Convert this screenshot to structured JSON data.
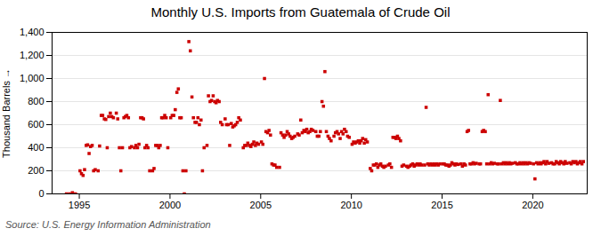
{
  "chart_data": {
    "type": "scatter",
    "title": "Monthly U.S. Imports from Guatemala of Crude Oil",
    "ylabel": "Thousand Barrels",
    "source": "Source: U.S. Energy Information Administration",
    "color": "#cc0000",
    "marker": "square",
    "grid": "y",
    "xlim": [
      1993.5,
      2023.0
    ],
    "ylim": [
      0,
      1400
    ],
    "xticks": [
      1995,
      2000,
      2005,
      2010,
      2015,
      2020
    ],
    "yticks": [
      0,
      200,
      400,
      600,
      800,
      {
        "value": 1000,
        "label": "1,000"
      },
      {
        "value": 1200,
        "label": "1,200"
      },
      {
        "value": 1400,
        "label": "1,400"
      }
    ],
    "x": [
      1994.29,
      1994.46,
      1994.62,
      1994.79,
      1995.04,
      1995.12,
      1995.21,
      1995.29,
      1995.38,
      1995.46,
      1995.54,
      1995.62,
      1995.71,
      1995.79,
      1995.88,
      1996.04,
      1996.12,
      1996.21,
      1996.29,
      1996.38,
      1996.46,
      1996.54,
      1996.62,
      1996.71,
      1996.79,
      1996.88,
      1997.04,
      1997.12,
      1997.21,
      1997.29,
      1997.38,
      1997.46,
      1997.54,
      1997.62,
      1997.71,
      1997.79,
      1997.88,
      1998.04,
      1998.12,
      1998.21,
      1998.29,
      1998.38,
      1998.46,
      1998.54,
      1998.62,
      1998.71,
      1998.79,
      1998.88,
      1999.04,
      1999.12,
      1999.21,
      1999.29,
      1999.38,
      1999.46,
      1999.54,
      1999.62,
      1999.71,
      1999.79,
      1999.88,
      2000.04,
      2000.12,
      2000.21,
      2000.29,
      2000.38,
      2000.46,
      2000.54,
      2000.62,
      2000.71,
      2000.79,
      2000.88,
      2001.04,
      2001.12,
      2001.21,
      2001.29,
      2001.38,
      2001.46,
      2001.54,
      2001.62,
      2001.71,
      2001.79,
      2001.88,
      2002.04,
      2002.12,
      2002.21,
      2002.29,
      2002.38,
      2002.46,
      2002.54,
      2002.62,
      2002.71,
      2002.79,
      2002.88,
      2003.04,
      2003.12,
      2003.21,
      2003.29,
      2003.38,
      2003.46,
      2003.54,
      2003.62,
      2003.71,
      2003.79,
      2003.88,
      2004.04,
      2004.12,
      2004.21,
      2004.29,
      2004.38,
      2004.46,
      2004.54,
      2004.62,
      2004.71,
      2004.79,
      2004.88,
      2005.04,
      2005.12,
      2005.21,
      2005.29,
      2005.38,
      2005.46,
      2005.54,
      2005.62,
      2005.71,
      2005.79,
      2005.88,
      2006.04,
      2006.12,
      2006.21,
      2006.29,
      2006.38,
      2006.46,
      2006.54,
      2006.62,
      2006.71,
      2006.79,
      2006.88,
      2007.04,
      2007.12,
      2007.21,
      2007.29,
      2007.38,
      2007.46,
      2007.54,
      2007.62,
      2007.71,
      2007.79,
      2007.88,
      2008.04,
      2008.12,
      2008.21,
      2008.29,
      2008.38,
      2008.46,
      2008.54,
      2008.62,
      2008.71,
      2008.79,
      2008.88,
      2009.04,
      2009.12,
      2009.21,
      2009.29,
      2009.38,
      2009.46,
      2009.54,
      2009.62,
      2009.71,
      2009.79,
      2009.88,
      2010.04,
      2010.12,
      2010.21,
      2010.29,
      2010.38,
      2010.46,
      2010.54,
      2010.62,
      2010.71,
      2010.79,
      2010.88,
      2011.04,
      2011.12,
      2011.21,
      2011.29,
      2011.38,
      2011.46,
      2011.54,
      2011.62,
      2011.71,
      2011.79,
      2011.88,
      2012.04,
      2012.12,
      2012.21,
      2012.29,
      2012.38,
      2012.46,
      2012.54,
      2012.62,
      2012.71,
      2012.79,
      2012.88,
      2013.04,
      2013.12,
      2013.21,
      2013.29,
      2013.38,
      2013.46,
      2013.54,
      2013.62,
      2013.71,
      2013.79,
      2013.88,
      2014.04,
      2014.12,
      2014.21,
      2014.29,
      2014.38,
      2014.46,
      2014.54,
      2014.62,
      2014.71,
      2014.79,
      2014.88,
      2015.04,
      2015.12,
      2015.21,
      2015.29,
      2015.38,
      2015.46,
      2015.54,
      2015.62,
      2015.71,
      2015.79,
      2015.88,
      2016.04,
      2016.12,
      2016.21,
      2016.29,
      2016.38,
      2016.46,
      2016.54,
      2016.62,
      2016.71,
      2016.79,
      2016.88,
      2017.04,
      2017.12,
      2017.21,
      2017.29,
      2017.38,
      2017.46,
      2017.54,
      2017.62,
      2017.71,
      2017.79,
      2017.88,
      2018.04,
      2018.12,
      2018.21,
      2018.29,
      2018.38,
      2018.46,
      2018.54,
      2018.62,
      2018.71,
      2018.79,
      2018.88,
      2019.04,
      2019.12,
      2019.21,
      2019.29,
      2019.38,
      2019.46,
      2019.54,
      2019.62,
      2019.71,
      2019.79,
      2019.88,
      2020.04,
      2020.12,
      2020.21,
      2020.29,
      2020.38,
      2020.46,
      2020.54,
      2020.62,
      2020.71,
      2020.79,
      2020.88,
      2021.04,
      2021.12,
      2021.21,
      2021.29,
      2021.38,
      2021.46,
      2021.54,
      2021.62,
      2021.71,
      2021.79,
      2021.88,
      2022.04,
      2022.12,
      2022.21,
      2022.29,
      2022.38,
      2022.46,
      2022.54,
      2022.62,
      2022.71,
      2022.79
    ],
    "values": [
      0,
      0,
      10,
      0,
      200,
      175,
      160,
      210,
      420,
      425,
      350,
      410,
      420,
      200,
      210,
      200,
      415,
      680,
      680,
      650,
      645,
      400,
      670,
      700,
      670,
      660,
      700,
      650,
      400,
      200,
      400,
      660,
      670,
      680,
      660,
      400,
      410,
      400,
      420,
      400,
      430,
      660,
      660,
      650,
      400,
      420,
      400,
      200,
      200,
      220,
      420,
      420,
      400,
      420,
      660,
      660,
      680,
      660,
      400,
      660,
      680,
      680,
      730,
      880,
      910,
      660,
      660,
      200,
      0,
      200,
      1320,
      1240,
      840,
      660,
      620,
      620,
      660,
      600,
      640,
      200,
      400,
      420,
      850,
      800,
      810,
      850,
      800,
      790,
      810,
      800,
      620,
      600,
      650,
      600,
      600,
      420,
      610,
      580,
      590,
      600,
      620,
      660,
      640,
      400,
      420,
      420,
      440,
      420,
      410,
      430,
      450,
      420,
      440,
      430,
      450,
      430,
      1000,
      540,
      530,
      550,
      510,
      260,
      250,
      250,
      230,
      230,
      530,
      510,
      490,
      510,
      540,
      520,
      500,
      480,
      490,
      500,
      520,
      510,
      640,
      530,
      550,
      540,
      560,
      530,
      540,
      560,
      550,
      540,
      500,
      500,
      540,
      800,
      760,
      1060,
      540,
      500,
      480,
      460,
      500,
      530,
      540,
      520,
      480,
      540,
      520,
      560,
      540,
      500,
      490,
      430,
      450,
      440,
      450,
      460,
      440,
      460,
      480,
      440,
      470,
      450,
      220,
      200,
      250,
      250,
      260,
      230,
      250,
      260,
      240,
      230,
      240,
      250,
      260,
      230,
      490,
      490,
      480,
      500,
      480,
      460,
      240,
      250,
      240,
      230,
      240,
      250,
      260,
      240,
      250,
      260,
      250,
      260,
      250,
      250,
      750,
      260,
      250,
      260,
      250,
      260,
      250,
      260,
      250,
      260,
      260,
      260,
      250,
      250,
      240,
      250,
      270,
      260,
      250,
      260,
      255,
      260,
      240,
      260,
      250,
      540,
      550,
      260,
      260,
      270,
      260,
      265,
      260,
      260,
      540,
      550,
      540,
      260,
      860,
      260,
      270,
      260,
      265,
      260,
      260,
      810,
      260,
      270,
      260,
      270,
      260,
      270,
      260,
      265,
      270,
      260,
      260,
      270,
      260,
      270,
      260,
      270,
      260,
      270,
      265,
      260,
      130,
      270,
      260,
      270,
      260,
      270,
      280,
      260,
      280,
      265,
      270,
      260,
      260,
      280,
      270,
      260,
      280,
      270,
      260,
      280,
      265,
      270,
      260,
      280,
      270,
      280,
      260,
      270,
      280,
      260,
      280
    ]
  }
}
